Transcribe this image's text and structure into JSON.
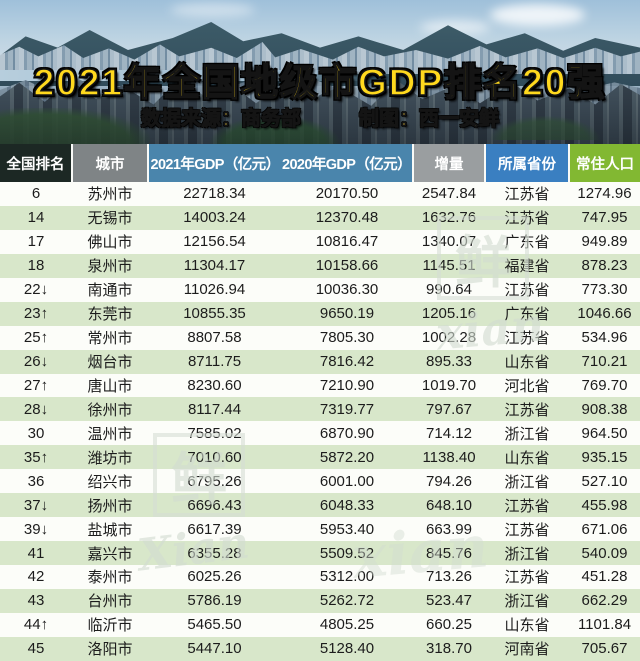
{
  "hero": {
    "title": "2021年全国地级市GDP排名20强",
    "source_label": "数据来源：商务部",
    "credit_label": "制图：西一安鲜"
  },
  "chart_data": {
    "type": "table",
    "title": "2021年全国地级市GDP排名20强",
    "source": "数据来源：商务部",
    "credit": "制图：西一安鲜",
    "columns": [
      "全国排名",
      "城市",
      "2021年GDP（亿元）",
      "2020年GDP（亿元）",
      "增量",
      "所属省份",
      "常住人口"
    ],
    "rows": [
      [
        "6",
        "苏州市",
        "22718.34",
        "20170.50",
        "2547.84",
        "江苏省",
        "1274.96"
      ],
      [
        "14",
        "无锡市",
        "14003.24",
        "12370.48",
        "1632.76",
        "江苏省",
        "747.95"
      ],
      [
        "17",
        "佛山市",
        "12156.54",
        "10816.47",
        "1340.07",
        "广东省",
        "949.89"
      ],
      [
        "18",
        "泉州市",
        "11304.17",
        "10158.66",
        "1145.51",
        "福建省",
        "878.23"
      ],
      [
        "22↓",
        "南通市",
        "11026.94",
        "10036.30",
        "990.64",
        "江苏省",
        "773.30"
      ],
      [
        "23↑",
        "东莞市",
        "10855.35",
        "9650.19",
        "1205.16",
        "广东省",
        "1046.66"
      ],
      [
        "25↑",
        "常州市",
        "8807.58",
        "7805.30",
        "1002.28",
        "江苏省",
        "534.96"
      ],
      [
        "26↓",
        "烟台市",
        "8711.75",
        "7816.42",
        "895.33",
        "山东省",
        "710.21"
      ],
      [
        "27↑",
        "唐山市",
        "8230.60",
        "7210.90",
        "1019.70",
        "河北省",
        "769.70"
      ],
      [
        "28↓",
        "徐州市",
        "8117.44",
        "7319.77",
        "797.67",
        "江苏省",
        "908.38"
      ],
      [
        "30",
        "温州市",
        "7585.02",
        "6870.90",
        "714.12",
        "浙江省",
        "964.50"
      ],
      [
        "35↑",
        "潍坊市",
        "7010.60",
        "5872.20",
        "1138.40",
        "山东省",
        "935.15"
      ],
      [
        "36",
        "绍兴市",
        "6795.26",
        "6001.00",
        "794.26",
        "浙江省",
        "527.10"
      ],
      [
        "37↓",
        "扬州市",
        "6696.43",
        "6048.33",
        "648.10",
        "江苏省",
        "455.98"
      ],
      [
        "39↓",
        "盐城市",
        "6617.39",
        "5953.40",
        "663.99",
        "江苏省",
        "671.06"
      ],
      [
        "41",
        "嘉兴市",
        "6355.28",
        "5509.52",
        "845.76",
        "浙江省",
        "540.09"
      ],
      [
        "42",
        "泰州市",
        "6025.26",
        "5312.00",
        "713.26",
        "江苏省",
        "451.28"
      ],
      [
        "43",
        "台州市",
        "5786.19",
        "5262.72",
        "523.47",
        "浙江省",
        "662.29"
      ],
      [
        "44↑",
        "临沂市",
        "5465.50",
        "4805.25",
        "660.25",
        "山东省",
        "1101.84"
      ],
      [
        "45",
        "洛阳市",
        "5447.10",
        "5128.40",
        "318.70",
        "河南省",
        "705.67"
      ]
    ],
    "layout_hints": {
      "row_stripe_even": true,
      "rank_arrows": {
        "up": "↑",
        "down": "↓"
      }
    }
  },
  "colors": {
    "header_rank_bg": "#1c2824",
    "header_city_bg": "#7f8486",
    "header_gdp_bg": "#4a85ac",
    "header_increase_bg": "#9a9ea0",
    "header_province_bg": "#3a7fc1",
    "header_population_bg": "#82b832",
    "row_even_bg": "#d8e7ca",
    "row_odd_bg": "#fcfdf9",
    "title_gold": "#ffd91e",
    "header_text": "#ffffff",
    "body_text": "#1c1c1c"
  },
  "watermarks": [
    {
      "type": "seal",
      "text": "鲜"
    },
    {
      "type": "script",
      "text": "xian"
    },
    {
      "type": "seal",
      "text": "鲜"
    },
    {
      "type": "script",
      "text": "Xian"
    },
    {
      "type": "script",
      "text": "xian"
    }
  ]
}
